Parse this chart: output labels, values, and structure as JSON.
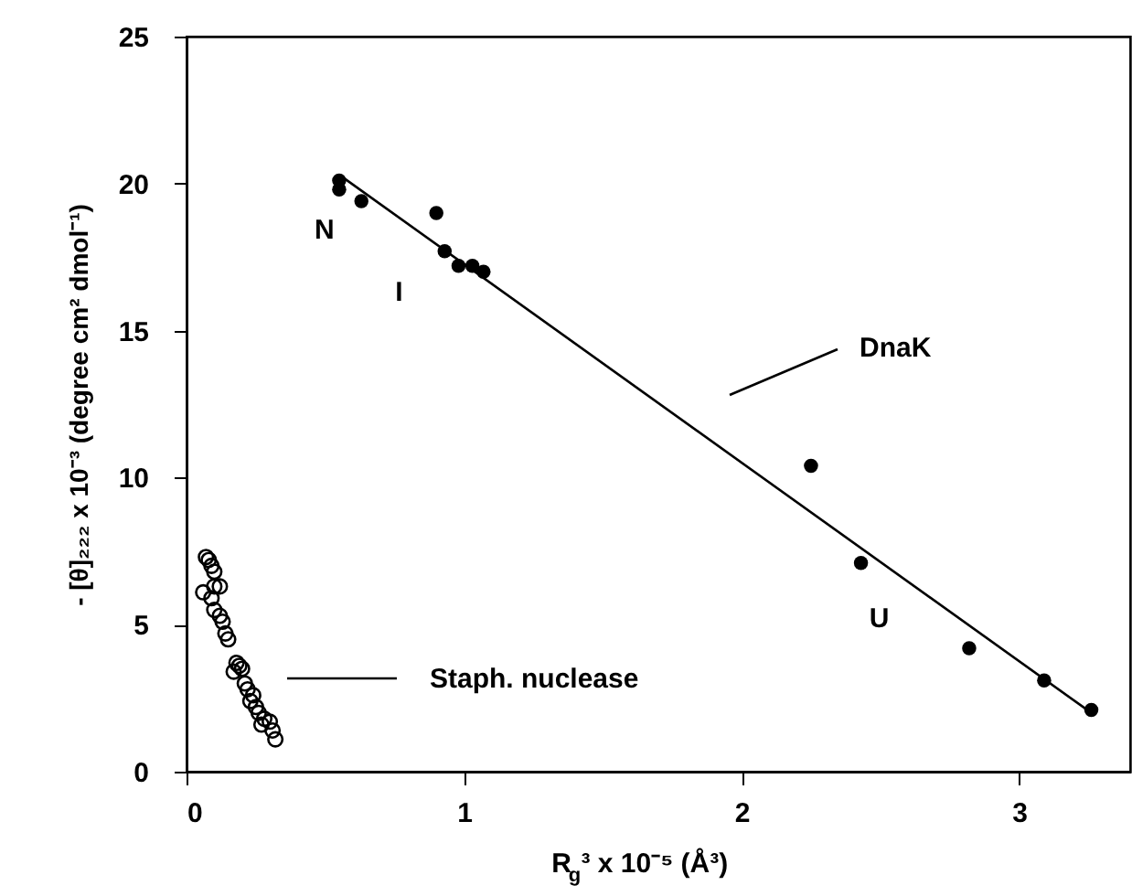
{
  "chart_data": {
    "type": "scatter",
    "xlabel": "R$_{g}$³ x 10⁻⁵ (Å³)",
    "ylabel": "- [θ]₂₂₂ x 10⁻³ (degree cm² dmol⁻¹)",
    "xlim": [
      0,
      3.4
    ],
    "ylim": [
      0,
      25
    ],
    "xticks": [
      0,
      1,
      2,
      3
    ],
    "yticks": [
      0,
      5,
      10,
      15,
      20,
      25
    ],
    "marker": "circle",
    "series": [
      {
        "color": "#000000",
        "x": [
          0.55,
          0.55,
          0.63,
          0.9,
          0.93,
          0.98,
          1.03,
          1.07,
          2.25,
          2.43,
          2.82,
          3.09,
          3.26
        ],
        "values": [
          20.1,
          19.8,
          19.4,
          19.0,
          17.7,
          17.2,
          17.2,
          17.0,
          10.4,
          7.1,
          4.2,
          3.1,
          2.1
        ]
      },
      {
        "color": "#000000",
        "type": "line",
        "marker": "none",
        "line_style": "solid",
        "x": [
          0.55,
          3.26
        ],
        "values": [
          20.3,
          2.0
        ]
      },
      {
        "color": "#000000",
        "marker": "open circle",
        "x": [
          0.07,
          0.08,
          0.09,
          0.1,
          0.06,
          0.1,
          0.12,
          0.09,
          0.1,
          0.12,
          0.13,
          0.14,
          0.15,
          0.18,
          0.19,
          0.17,
          0.2,
          0.21,
          0.22,
          0.24,
          0.23,
          0.25,
          0.26,
          0.28,
          0.27,
          0.3,
          0.31,
          0.32
        ],
        "values": [
          7.3,
          7.2,
          7.0,
          6.8,
          6.1,
          6.3,
          6.3,
          5.9,
          5.5,
          5.3,
          5.1,
          4.7,
          4.5,
          3.7,
          3.6,
          3.4,
          3.5,
          3.0,
          2.8,
          2.6,
          2.4,
          2.2,
          2.0,
          1.8,
          1.6,
          1.7,
          1.4,
          1.1
        ]
      }
    ],
    "annotations": [
      {
        "text": "N",
        "x": 0.55,
        "y": 19.8
      },
      {
        "text": "I",
        "x": 0.93,
        "y": 17.7
      },
      {
        "text": "U",
        "x": 2.43,
        "y": 7.1
      },
      "DnaK",
      "Staph.  nuclease"
    ]
  }
}
